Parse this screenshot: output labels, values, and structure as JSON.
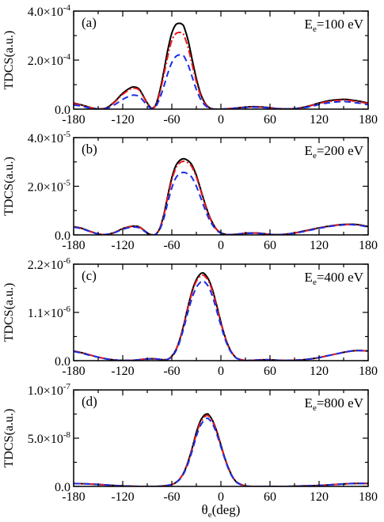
{
  "colors": {
    "series_solid": "#000000",
    "series_dashdot": "#e8191b",
    "series_dashed": "#1b2ee8",
    "frame": "#000000"
  },
  "x_axis": {
    "label_symbol": "θ",
    "label_sub": "e",
    "label_unit": "(deg)",
    "range": [
      -180,
      180
    ],
    "ticks": [
      -180,
      -120,
      -60,
      0,
      60,
      120,
      180
    ],
    "tick_labels": [
      "-180",
      "-120",
      "-60",
      "0",
      "60",
      "120",
      "180"
    ]
  },
  "y_axis_title": "TDCS(a.u.)",
  "chart_data": [
    {
      "type": "line",
      "panel": "(a)",
      "energy": {
        "prefix": "E",
        "sub": "e",
        "value": "=100 eV"
      },
      "ylim": [
        0,
        0.0004
      ],
      "yticks": [
        {
          "value": 0,
          "mantissa": "0.0",
          "exp": ""
        },
        {
          "value": 0.0002,
          "mantissa": "2.0×10",
          "exp": "-4"
        },
        {
          "value": 0.0004,
          "mantissa": "4.0×10",
          "exp": "-4"
        }
      ],
      "x": [
        -180,
        -170,
        -160,
        -150,
        -140,
        -130,
        -120,
        -110,
        -105,
        -100,
        -95,
        -90,
        -85,
        -80,
        -75,
        -70,
        -65,
        -60,
        -55,
        -50,
        -47,
        -45,
        -40,
        -35,
        -30,
        -25,
        -20,
        -15,
        -10,
        -5,
        0,
        10,
        20,
        30,
        40,
        50,
        60,
        70,
        80,
        90,
        100,
        110,
        120,
        130,
        140,
        150,
        155,
        160,
        170,
        180
      ],
      "series": [
        {
          "style": "solid",
          "values": [
            2.5e-05,
            1.7e-05,
            7e-06,
            1e-06,
            5e-06,
            3e-05,
            6.5e-05,
            8.8e-05,
            9e-05,
            8.2e-05,
            5.5e-05,
            2.5e-05,
            5e-06,
            1.5e-05,
            7e-05,
            0.00015,
            0.00024,
            0.00031,
            0.000345,
            0.00035,
            0.000345,
            0.000335,
            0.00028,
            0.0002,
            0.000125,
            6.5e-05,
            2.8e-05,
            8e-06,
            1e-06,
            0,
            0,
            2e-06,
            5e-06,
            8e-06,
            1e-05,
            9e-06,
            6e-06,
            2e-06,
            1e-06,
            2e-06,
            7e-06,
            1.5e-05,
            2.5e-05,
            3.3e-05,
            3.8e-05,
            4e-05,
            3.9e-05,
            3.7e-05,
            3.2e-05,
            2.5e-05
          ]
        },
        {
          "style": "dashdot",
          "values": [
            2.3e-05,
            1.6e-05,
            6e-06,
            1e-06,
            4e-06,
            2.8e-05,
            6e-05,
            8.3e-05,
            8.5e-05,
            7.8e-05,
            5.2e-05,
            2.3e-05,
            4e-06,
            1.3e-05,
            6.2e-05,
            0.000135,
            0.000215,
            0.00028,
            0.000308,
            0.000313,
            0.00031,
            0.0003,
            0.00025,
            0.00018,
            0.000112,
            5.8e-05,
            2.5e-05,
            7e-06,
            1e-06,
            0,
            0,
            2e-06,
            5e-06,
            8e-06,
            9e-06,
            8e-06,
            5e-06,
            2e-06,
            1e-06,
            2e-06,
            6e-06,
            1.4e-05,
            2.3e-05,
            3e-05,
            3.5e-05,
            3.7e-05,
            3.6e-05,
            3.4e-05,
            2.9e-05,
            2.3e-05
          ]
        },
        {
          "style": "dashed",
          "values": [
            1.7e-05,
            1.2e-05,
            4e-06,
            1e-06,
            3e-06,
            1.8e-05,
            4e-05,
            5.5e-05,
            5.7e-05,
            5.2e-05,
            3.5e-05,
            1.5e-05,
            3e-06,
            9e-06,
            4.2e-05,
            9e-05,
            0.000145,
            0.00019,
            0.000215,
            0.000222,
            0.00022,
            0.000215,
            0.00018,
            0.00013,
            8e-05,
            4.2e-05,
            1.8e-05,
            5e-06,
            1e-06,
            0,
            0,
            2e-06,
            4e-06,
            7e-06,
            8e-06,
            7e-06,
            4e-06,
            1e-06,
            1e-06,
            2e-06,
            5e-06,
            1.1e-05,
            1.9e-05,
            2.5e-05,
            2.9e-05,
            3.1e-05,
            3e-05,
            2.8e-05,
            2.4e-05,
            1.8e-05
          ]
        }
      ]
    },
    {
      "type": "line",
      "panel": "(b)",
      "energy": {
        "prefix": "E",
        "sub": "e",
        "value": "=200 eV"
      },
      "ylim": [
        0,
        4e-05
      ],
      "yticks": [
        {
          "value": 0,
          "mantissa": "0.0",
          "exp": ""
        },
        {
          "value": 2e-05,
          "mantissa": "2.0×10",
          "exp": "-5"
        },
        {
          "value": 4e-05,
          "mantissa": "4.0×10",
          "exp": "-5"
        }
      ],
      "x": [
        -180,
        -170,
        -160,
        -150,
        -140,
        -130,
        -120,
        -110,
        -105,
        -100,
        -95,
        -90,
        -85,
        -80,
        -75,
        -70,
        -65,
        -60,
        -55,
        -50,
        -45,
        -40,
        -37,
        -35,
        -30,
        -25,
        -20,
        -15,
        -10,
        -5,
        0,
        5,
        10,
        20,
        30,
        40,
        50,
        60,
        70,
        80,
        90,
        100,
        110,
        120,
        130,
        140,
        150,
        160,
        170,
        180
      ],
      "series": [
        {
          "style": "solid",
          "values": [
            3.4e-06,
            2.7e-06,
            1.5e-06,
            4e-07,
            2e-07,
            1e-06,
            2.6e-06,
            3.5e-06,
            3.6e-06,
            3.3e-06,
            2.2e-06,
            8e-07,
            1e-07,
            2e-07,
            2.5e-06,
            8e-06,
            1.6e-05,
            2.35e-05,
            2.85e-05,
            3.07e-05,
            3.13e-05,
            3.05e-05,
            2.95e-05,
            2.85e-05,
            2.45e-05,
            1.9e-05,
            1.35e-05,
            8.5e-06,
            4.8e-06,
            2.2e-06,
            9e-07,
            3e-07,
            1e-07,
            3e-07,
            7e-07,
            8e-07,
            6e-07,
            2e-07,
            1e-07,
            3e-07,
            8e-07,
            1.5e-06,
            2.2e-06,
            2.9e-06,
            3.5e-06,
            4e-06,
            4.3e-06,
            4.4e-06,
            4.1e-06,
            3.4e-06
          ]
        },
        {
          "style": "dashdot",
          "values": [
            3.3e-06,
            2.6e-06,
            1.4e-06,
            4e-07,
            2e-07,
            1e-06,
            2.5e-06,
            3.4e-06,
            3.5e-06,
            3.2e-06,
            2.1e-06,
            8e-07,
            1e-07,
            2e-07,
            2.4e-06,
            7.6e-06,
            1.53e-05,
            2.25e-05,
            2.75e-05,
            2.97e-05,
            3.03e-05,
            2.96e-05,
            2.87e-05,
            2.77e-05,
            2.38e-05,
            1.85e-05,
            1.31e-05,
            8.2e-06,
            4.6e-06,
            2.1e-06,
            8e-07,
            3e-07,
            1e-07,
            3e-07,
            7e-07,
            8e-07,
            6e-07,
            2e-07,
            1e-07,
            3e-07,
            8e-07,
            1.4e-06,
            2.1e-06,
            2.8e-06,
            3.4e-06,
            3.9e-06,
            4.2e-06,
            4.3e-06,
            4e-06,
            3.3e-06
          ]
        },
        {
          "style": "dashed",
          "values": [
            3.2e-06,
            2.5e-06,
            1.4e-06,
            4e-07,
            2e-07,
            9e-07,
            2.3e-06,
            3.1e-06,
            3.2e-06,
            2.9e-06,
            1.9e-06,
            7e-07,
            1e-07,
            2e-07,
            2e-06,
            6.5e-06,
            1.32e-05,
            1.93e-05,
            2.35e-05,
            2.52e-05,
            2.57e-05,
            2.5e-05,
            2.42e-05,
            2.34e-05,
            2e-05,
            1.56e-05,
            1.1e-05,
            6.9e-06,
            3.9e-06,
            1.8e-06,
            7e-07,
            2e-07,
            1e-07,
            3e-07,
            6e-07,
            7e-07,
            5e-07,
            2e-07,
            1e-07,
            3e-07,
            7e-07,
            1.3e-06,
            2e-06,
            2.7e-06,
            3.3e-06,
            3.8e-06,
            4.1e-06,
            4.2e-06,
            3.9e-06,
            3.2e-06
          ]
        }
      ]
    },
    {
      "type": "line",
      "panel": "(c)",
      "energy": {
        "prefix": "E",
        "sub": "e",
        "value": "=400 eV"
      },
      "ylim": [
        0,
        2.2e-06
      ],
      "yticks": [
        {
          "value": 0,
          "mantissa": "0.0",
          "exp": ""
        },
        {
          "value": 1.1e-06,
          "mantissa": "1.1×10",
          "exp": "-6"
        },
        {
          "value": 2.2e-06,
          "mantissa": "2.2×10",
          "exp": "-6"
        }
      ],
      "x": [
        -180,
        -170,
        -160,
        -150,
        -140,
        -130,
        -120,
        -110,
        -100,
        -90,
        -80,
        -70,
        -65,
        -60,
        -55,
        -50,
        -45,
        -40,
        -35,
        -30,
        -25,
        -22,
        -20,
        -15,
        -10,
        -5,
        0,
        5,
        10,
        15,
        20,
        30,
        40,
        50,
        60,
        70,
        80,
        90,
        100,
        110,
        120,
        130,
        140,
        150,
        160,
        165,
        170,
        180
      ],
      "series": [
        {
          "style": "solid",
          "values": [
            2.2e-07,
            1.8e-07,
            1.3e-07,
            8e-08,
            4e-08,
            1.5e-08,
            5e-09,
            5e-09,
            2e-08,
            4e-08,
            4e-08,
            2e-08,
            3e-08,
            1e-07,
            2.5e-07,
            5e-07,
            8.5e-07,
            1.25e-06,
            1.6e-06,
            1.85e-06,
            1.98e-06,
            2e-06,
            1.98e-06,
            1.85e-06,
            1.6e-06,
            1.25e-06,
            8.8e-07,
            5.5e-07,
            3e-07,
            1.4e-07,
            5e-08,
            5e-09,
            1e-08,
            2e-08,
            2e-08,
            1e-08,
            5e-09,
            1e-08,
            2e-08,
            4e-08,
            7e-08,
            1.1e-07,
            1.5e-07,
            1.9e-07,
            2.2e-07,
            2.3e-07,
            2.3e-07,
            2.2e-07
          ]
        },
        {
          "style": "dashdot",
          "values": [
            2.2e-07,
            1.8e-07,
            1.3e-07,
            8e-08,
            4e-08,
            1.5e-08,
            5e-09,
            5e-09,
            2e-08,
            4e-08,
            4e-08,
            2e-08,
            3e-08,
            1e-07,
            2.4e-07,
            4.9e-07,
            8.3e-07,
            1.22e-06,
            1.56e-06,
            1.81e-06,
            1.93e-06,
            1.95e-06,
            1.93e-06,
            1.81e-06,
            1.56e-06,
            1.22e-06,
            8.6e-07,
            5.4e-07,
            2.9e-07,
            1.4e-07,
            5e-08,
            5e-09,
            1e-08,
            2e-08,
            2e-08,
            1e-08,
            5e-09,
            1e-08,
            2e-08,
            4e-08,
            7e-08,
            1.1e-07,
            1.5e-07,
            1.9e-07,
            2.2e-07,
            2.3e-07,
            2.3e-07,
            2.2e-07
          ]
        },
        {
          "style": "dashed",
          "values": [
            2.1e-07,
            1.7e-07,
            1.2e-07,
            8e-08,
            4e-08,
            1.5e-08,
            5e-09,
            5e-09,
            2e-08,
            4e-08,
            4e-08,
            2e-08,
            3e-08,
            9e-08,
            2.2e-07,
            4.5e-07,
            7.7e-07,
            1.13e-06,
            1.44e-06,
            1.67e-06,
            1.79e-06,
            1.82e-06,
            1.8e-06,
            1.68e-06,
            1.45e-06,
            1.13e-06,
            8e-07,
            5e-07,
            2.7e-07,
            1.3e-07,
            4.5e-08,
            5e-09,
            1e-08,
            2e-08,
            2e-08,
            1e-08,
            5e-09,
            1e-08,
            2e-08,
            4e-08,
            7e-08,
            1.1e-07,
            1.5e-07,
            1.9e-07,
            2.2e-07,
            2.3e-07,
            2.3e-07,
            2.2e-07
          ]
        }
      ]
    },
    {
      "type": "line",
      "panel": "(d)",
      "energy": {
        "prefix": "E",
        "sub": "e",
        "value": "=800 eV"
      },
      "ylim": [
        0,
        1e-07
      ],
      "yticks": [
        {
          "value": 0,
          "mantissa": "0.0",
          "exp": ""
        },
        {
          "value": 5e-08,
          "mantissa": "5.0×10",
          "exp": "-8"
        },
        {
          "value": 1e-07,
          "mantissa": "1.0×10",
          "exp": "-7"
        }
      ],
      "x": [
        -180,
        -160,
        -140,
        -120,
        -100,
        -80,
        -70,
        -60,
        -55,
        -50,
        -45,
        -40,
        -35,
        -30,
        -25,
        -20,
        -17,
        -15,
        -10,
        -5,
        0,
        5,
        10,
        15,
        20,
        30,
        40,
        60,
        80,
        100,
        120,
        140,
        160,
        180
      ],
      "series": [
        {
          "style": "solid",
          "values": [
            3e-09,
            2.5e-09,
            1.5e-09,
            5e-10,
            0,
            0,
            5e-10,
            2e-09,
            4e-09,
            8e-09,
            1.5e-08,
            2.6e-08,
            4e-08,
            5.6e-08,
            6.8e-08,
            7.4e-08,
            7.5e-08,
            7.45e-08,
            6.8e-08,
            5.7e-08,
            4.3e-08,
            2.9e-08,
            1.75e-08,
            9e-09,
            4e-09,
            5e-10,
            0,
            0,
            0,
            5e-10,
            1e-09,
            2e-09,
            3e-09,
            3e-09
          ]
        },
        {
          "style": "dashdot",
          "values": [
            3e-09,
            2.5e-09,
            1.5e-09,
            5e-10,
            0,
            0,
            5e-10,
            2e-09,
            4e-09,
            8e-09,
            1.5e-08,
            2.5e-08,
            3.9e-08,
            5.4e-08,
            6.6e-08,
            7.2e-08,
            7.35e-08,
            7.3e-08,
            6.7e-08,
            5.6e-08,
            4.2e-08,
            2.85e-08,
            1.7e-08,
            8.8e-09,
            3.8e-09,
            5e-10,
            0,
            0,
            0,
            5e-10,
            1e-09,
            2e-09,
            3e-09,
            3e-09
          ]
        },
        {
          "style": "dashed",
          "values": [
            3e-09,
            2.5e-09,
            1.5e-09,
            5e-10,
            0,
            0,
            5e-10,
            2e-09,
            4e-09,
            7.5e-09,
            1.4e-08,
            2.4e-08,
            3.7e-08,
            5.2e-08,
            6.3e-08,
            6.9e-08,
            7.05e-08,
            7e-08,
            6.45e-08,
            5.4e-08,
            4.1e-08,
            2.8e-08,
            1.65e-08,
            8.5e-09,
            3.6e-09,
            5e-10,
            0,
            0,
            0,
            5e-10,
            1e-09,
            2e-09,
            3e-09,
            3e-09
          ]
        }
      ]
    }
  ]
}
